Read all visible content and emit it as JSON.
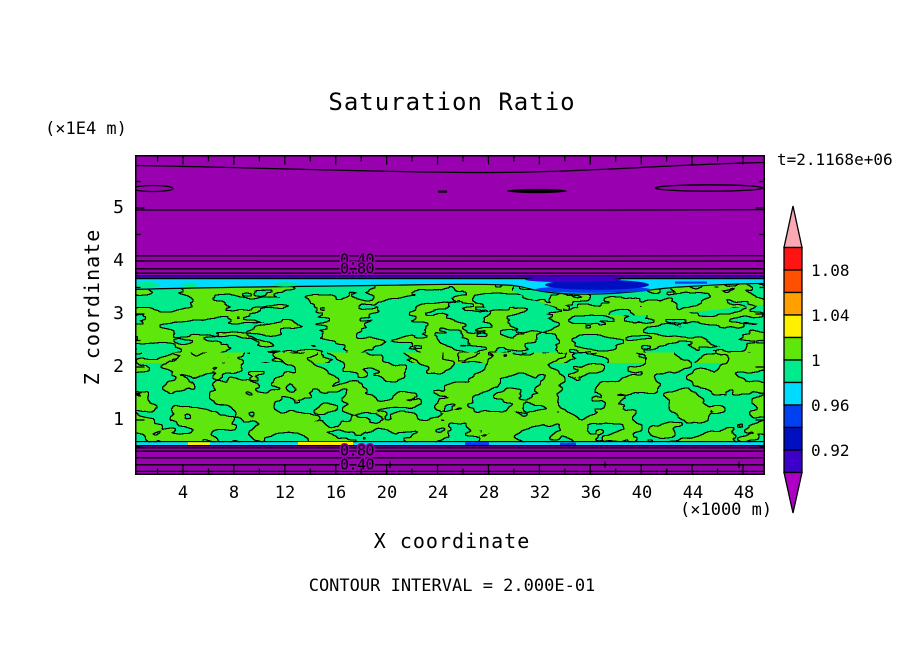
{
  "title": "Saturation Ratio",
  "time_label": "t=2.1168e+06",
  "footer_note": "CONTOUR INTERVAL = 2.000E-01",
  "y_axis": {
    "unit_label": "(×1E4 m)",
    "title": "Z coordinate",
    "tick_labels": [
      "5",
      "4",
      "3",
      "2",
      "1"
    ]
  },
  "x_axis": {
    "title": "X coordinate",
    "unit_label": "(×1000 m)",
    "tick_labels": [
      "4",
      "8",
      "12",
      "16",
      "20",
      "24",
      "28",
      "32",
      "36",
      "40",
      "44",
      "48"
    ]
  },
  "contour_labels": {
    "upper_a": "0.40",
    "upper_b": "0.80",
    "lower_a": "0.80",
    "lower_b": "0.40"
  },
  "plot_colors": {
    "purple": "#9800B0",
    "chartreuse": "#5FE60A",
    "spring_green": "#00EC8C",
    "cyan": "#00DCFF",
    "blue": "#0040F0",
    "navy": "#0010C0",
    "indigo": "#3C00C8",
    "yellow": "#FFF000",
    "black": "#000000"
  },
  "colorbar": {
    "labels": [
      "1.08",
      "1.04",
      "1",
      "0.96",
      "0.92"
    ],
    "over_color": "#F9A8B4",
    "under_color": "#AC00C4",
    "segments": [
      {
        "range": "1.08-1.10",
        "color": "#FF1414"
      },
      {
        "range": "1.06-1.08",
        "color": "#FF5000"
      },
      {
        "range": "1.04-1.06",
        "color": "#FFA000"
      },
      {
        "range": "1.02-1.04",
        "color": "#FFF000"
      },
      {
        "range": "1.00-1.02",
        "color": "#5FE60A"
      },
      {
        "range": "0.98-1.00",
        "color": "#00EC8C"
      },
      {
        "range": "0.96-0.98",
        "color": "#00DCFF"
      },
      {
        "range": "0.94-0.96",
        "color": "#0040F0"
      },
      {
        "range": "0.92-0.94",
        "color": "#0010C0"
      },
      {
        "range": "0.90-0.92",
        "color": "#3C00C8"
      }
    ]
  },
  "chart_data": {
    "type": "heatmap",
    "subtype": "filled-contour",
    "title": "Saturation Ratio",
    "xlabel": "X coordinate",
    "ylabel": "Z coordinate",
    "x_unit": "×1000 m",
    "y_unit": "×1E4 m",
    "xlim": [
      0,
      49.6
    ],
    "ylim": [
      0,
      6.05
    ],
    "x_ticks": [
      4,
      8,
      12,
      16,
      20,
      24,
      28,
      32,
      36,
      40,
      44,
      48
    ],
    "y_ticks": [
      1,
      2,
      3,
      4,
      5
    ],
    "grid": false,
    "time_annotation": "t=2.1168e+06",
    "contour_interval": 0.2,
    "labeled_contours": [
      0.4,
      0.8
    ],
    "colorbar_boundaries": [
      0.9,
      0.92,
      0.94,
      0.96,
      0.98,
      1.0,
      1.02,
      1.04,
      1.06,
      1.08,
      1.1
    ],
    "colorbar_tick_values": [
      1.08,
      1.04,
      1.0,
      0.96,
      0.92
    ],
    "legend_position": "right",
    "regions": [
      {
        "name": "upper-unsaturated-zone",
        "z_range": [
          3.65,
          6.05
        ],
        "saturation": "< 0.90",
        "description": "uniform purple; horizontal contour lines at 0.40 and 0.80 labeled near x=16-19, plus thin lens-shaped closed contours near z=5.35"
      },
      {
        "name": "upper-transition-band",
        "z_range": [
          3.55,
          3.7
        ],
        "saturation": "0.90-0.98",
        "description": "thin indigo then cyan strip across full width; blue/navy depression dipping to z=3.35 between x=31 and x=45"
      },
      {
        "name": "saturated-middle-zone",
        "z_range": [
          0.6,
          3.6
        ],
        "saturation": "0.98-1.02",
        "description": "mottled mixture of chartreuse (1.00-1.02) and spring green (0.98-1.00) speckled blobs with black contour outlines; spring green dominates lower half and upper right"
      },
      {
        "name": "lower-transition-band",
        "z_range": [
          0.55,
          0.65
        ],
        "saturation": "0.90-1.04",
        "description": "thin cyan strip with occasional blue and yellow patches"
      },
      {
        "name": "lower-unsaturated-zone",
        "z_range": [
          0,
          0.6
        ],
        "saturation": "< 0.90",
        "description": "uniform purple; horizontal contour lines at 0.80 and 0.40 labeled near x=16-19 with + markers on the 0.40 contour"
      }
    ]
  }
}
